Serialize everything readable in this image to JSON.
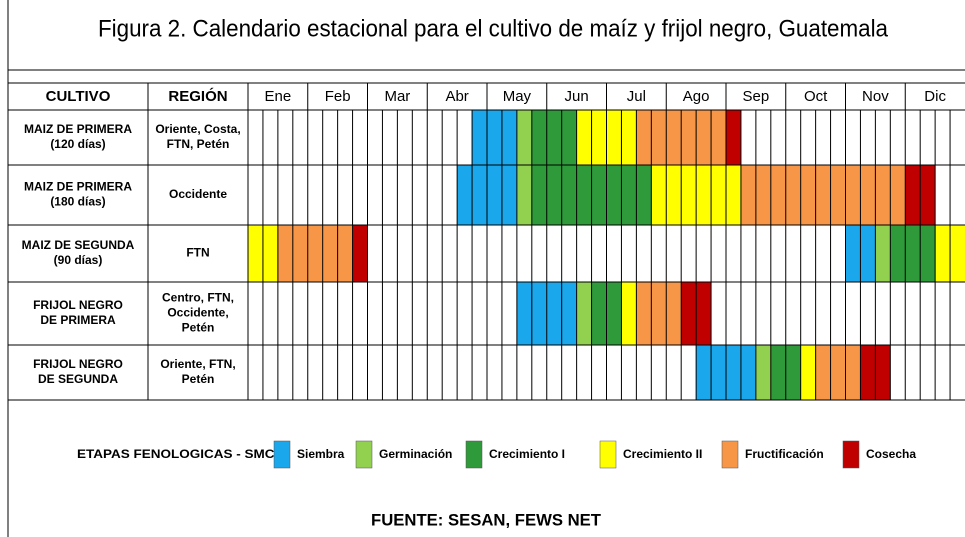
{
  "header": {
    "title": "Figura 2.  Calendario estacional para el cultivo de maíz y frijol negro, Guatemala"
  },
  "table": {
    "columns": [
      "CULTIVO",
      "REGIÓN"
    ],
    "months": [
      "Ene",
      "Feb",
      "Mar",
      "Abr",
      "May",
      "Jun",
      "Jul",
      "Ago",
      "Sep",
      "Oct",
      "Nov",
      "Dic"
    ],
    "rows": [
      {
        "crop": [
          "MAIZ DE PRIMERA",
          "(120 días)"
        ],
        "region": [
          "Oriente, Costa,",
          "FTN, Petén"
        ],
        "stages": [
          {
            "stage": "Siembra",
            "start": 15,
            "length": 3
          },
          {
            "stage": "Germinación",
            "start": 18,
            "length": 1
          },
          {
            "stage": "Crecimiento I",
            "start": 19,
            "length": 3
          },
          {
            "stage": "Crecimiento II",
            "start": 22,
            "length": 4
          },
          {
            "stage": "Fructificación",
            "start": 26,
            "length": 6
          },
          {
            "stage": "Cosecha",
            "start": 32,
            "length": 1
          }
        ]
      },
      {
        "crop": [
          "MAIZ DE PRIMERA",
          "(180 días)"
        ],
        "region": [
          "Occidente"
        ],
        "stages": [
          {
            "stage": "Siembra",
            "start": 14,
            "length": 4
          },
          {
            "stage": "Germinación",
            "start": 18,
            "length": 1
          },
          {
            "stage": "Crecimiento I",
            "start": 19,
            "length": 8
          },
          {
            "stage": "Crecimiento II",
            "start": 27,
            "length": 6
          },
          {
            "stage": "Fructificación",
            "start": 33,
            "length": 11
          },
          {
            "stage": "Cosecha",
            "start": 44,
            "length": 2
          }
        ]
      },
      {
        "crop": [
          "MAIZ DE SEGUNDA",
          "(90 días)"
        ],
        "region": [
          "FTN"
        ],
        "stages": [
          {
            "stage": "Crecimiento II",
            "start": 0,
            "length": 2
          },
          {
            "stage": "Fructificación",
            "start": 2,
            "length": 5
          },
          {
            "stage": "Cosecha",
            "start": 7,
            "length": 1
          },
          {
            "stage": "Siembra",
            "start": 40,
            "length": 2
          },
          {
            "stage": "Germinación",
            "start": 42,
            "length": 1
          },
          {
            "stage": "Crecimiento I",
            "start": 43,
            "length": 3
          },
          {
            "stage": "Crecimiento II",
            "start": 46,
            "length": 2
          }
        ]
      },
      {
        "crop": [
          "FRIJOL NEGRO",
          "DE PRIMERA"
        ],
        "region": [
          "Centro, FTN,",
          "Occidente,",
          "Petén"
        ],
        "stages": [
          {
            "stage": "Siembra",
            "start": 18,
            "length": 4
          },
          {
            "stage": "Germinación",
            "start": 22,
            "length": 1
          },
          {
            "stage": "Crecimiento I",
            "start": 23,
            "length": 2
          },
          {
            "stage": "Crecimiento II",
            "start": 25,
            "length": 1
          },
          {
            "stage": "Fructificación",
            "start": 26,
            "length": 3
          },
          {
            "stage": "Cosecha",
            "start": 29,
            "length": 2
          }
        ]
      },
      {
        "crop": [
          "FRIJOL NEGRO",
          "DE SEGUNDA"
        ],
        "region": [
          "Oriente, FTN,",
          "Petén"
        ],
        "stages": [
          {
            "stage": "Siembra",
            "start": 30,
            "length": 4
          },
          {
            "stage": "Germinación",
            "start": 34,
            "length": 1
          },
          {
            "stage": "Crecimiento I",
            "start": 35,
            "length": 2
          },
          {
            "stage": "Crecimiento II",
            "start": 37,
            "length": 1
          },
          {
            "stage": "Fructificación",
            "start": 38,
            "length": 3
          },
          {
            "stage": "Cosecha",
            "start": 41,
            "length": 2
          }
        ]
      }
    ]
  },
  "legend": {
    "label": "ETAPAS FENOLOGICAS - SMC-",
    "items": [
      {
        "name": "Siembra",
        "color": "#1aa7ec"
      },
      {
        "name": "Germinación",
        "color": "#92d050"
      },
      {
        "name": "Crecimiento I",
        "color": "#2f9a3a"
      },
      {
        "name": "Crecimiento II",
        "color": "#ffff00"
      },
      {
        "name": "Fructificación",
        "color": "#f79646"
      },
      {
        "name": "Cosecha",
        "color": "#c00000"
      }
    ]
  },
  "footer": {
    "source": "FUENTE: SESAN, FEWS NET"
  }
}
